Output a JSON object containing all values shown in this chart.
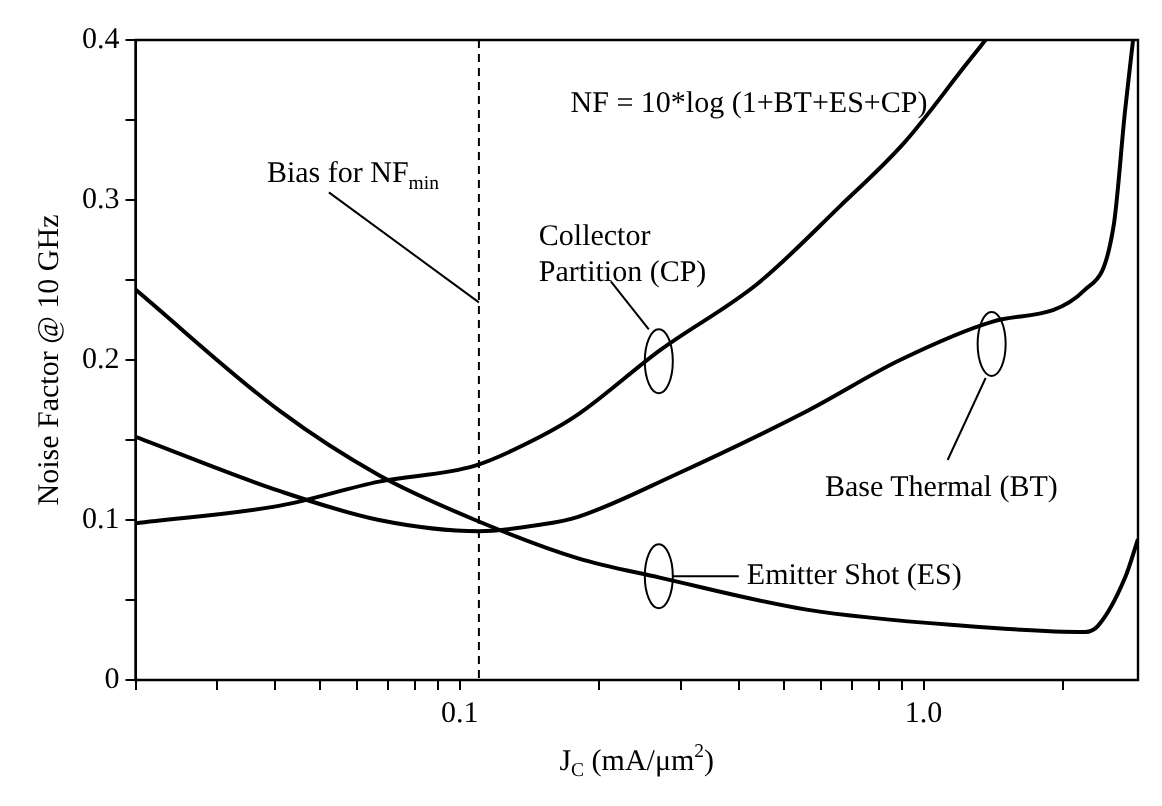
{
  "chart_data": {
    "type": "line",
    "xlabel": "J$_{C}$ (mA/μm$^{2}$)",
    "ylabel": "Noise Factor @ 10 GHz",
    "log": "x",
    "xlim": [
      0.02,
      2.9
    ],
    "ylim": [
      0,
      0.4
    ],
    "xticks": [
      {
        "value": 0.02,
        "label": null
      },
      {
        "value": 0.03,
        "label": null
      },
      {
        "value": 0.04,
        "label": null
      },
      {
        "value": 0.05,
        "label": null
      },
      {
        "value": 0.06,
        "label": null
      },
      {
        "value": 0.07,
        "label": null
      },
      {
        "value": 0.08,
        "label": null
      },
      {
        "value": 0.09,
        "label": null
      },
      0.1,
      {
        "value": 0.2,
        "label": null
      },
      {
        "value": 0.3,
        "label": null
      },
      {
        "value": 0.4,
        "label": null
      },
      {
        "value": 0.5,
        "label": null
      },
      {
        "value": 0.6,
        "label": null
      },
      {
        "value": 0.7,
        "label": null
      },
      {
        "value": 0.8,
        "label": null
      },
      {
        "value": 0.9,
        "label": null
      },
      {
        "value": 1,
        "label": "1.0"
      },
      {
        "value": 2,
        "label": null
      }
    ],
    "yticks": [
      0,
      {
        "value": 0.05,
        "label": null
      },
      0.1,
      {
        "value": 0.15,
        "label": null
      },
      0.2,
      {
        "value": 0.25,
        "label": null
      },
      0.3,
      {
        "value": 0.35,
        "label": null
      },
      0.4
    ],
    "grid": false,
    "legend": false,
    "marker": "none",
    "line_style": "solid",
    "series": [
      {
        "color": "#000000",
        "x": [
          0.02,
          0.041,
          0.067,
          0.108,
          0.149,
          0.18,
          0.27,
          0.44,
          0.66,
          0.91,
          1.23,
          1.36
        ],
        "values": [
          0.098,
          0.109,
          0.124,
          0.134,
          0.152,
          0.166,
          0.206,
          0.248,
          0.296,
          0.336,
          0.384,
          0.4
        ]
      },
      {
        "color": "#000000",
        "x": [
          0.02,
          0.041,
          0.067,
          0.11,
          0.149,
          0.18,
          0.29,
          0.56,
          0.89,
          1.41,
          2.23,
          2.57,
          2.72,
          2.83
        ],
        "values": [
          0.152,
          0.118,
          0.1,
          0.093,
          0.097,
          0.102,
          0.128,
          0.168,
          0.2,
          0.224,
          0.244,
          0.284,
          0.356,
          0.4
        ]
      },
      {
        "color": "#000000",
        "x": [
          0.02,
          0.041,
          0.067,
          0.108,
          0.18,
          0.27,
          0.56,
          1.2,
          2.23,
          2.38,
          2.72,
          2.9
        ],
        "values": [
          0.244,
          0.168,
          0.128,
          0.1,
          0.076,
          0.064,
          0.044,
          0.034,
          0.03,
          0.034,
          0.064,
          0.088
        ]
      }
    ],
    "ref_lines": [
      {
        "axis": "x",
        "value": 0.11,
        "label": "Bias for NF$_{min}$",
        "line_style": "dashed"
      }
    ],
    "annotations": [
      "NF = 10*log (1+BT+ES+CP)",
      "Collector Partition (CP)",
      "Base Thermal (BT)",
      "Emitter Shot (ES)"
    ]
  }
}
